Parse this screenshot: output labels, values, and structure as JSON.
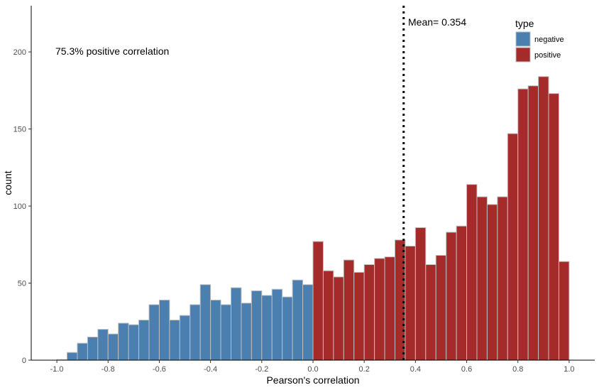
{
  "chart_data": {
    "type": "bar",
    "subtype": "histogram",
    "xlabel": "Pearson's correlation",
    "ylabel": "count",
    "xlim": [
      -1.1,
      1.1
    ],
    "ylim": [
      0,
      230
    ],
    "x_ticks": [
      -1.0,
      -0.8,
      -0.6,
      -0.4,
      -0.2,
      0.0,
      0.2,
      0.4,
      0.6,
      0.8,
      1.0
    ],
    "x_tick_labels": [
      "-1.0",
      "-0.8",
      "-0.6",
      "-0.4",
      "-0.2",
      "0.0",
      "0.2",
      "0.4",
      "0.6",
      "0.8",
      "1.0"
    ],
    "y_ticks": [
      0,
      50,
      100,
      150,
      200
    ],
    "y_tick_labels": [
      "0",
      "50",
      "100",
      "150",
      "200"
    ],
    "grid": false,
    "bin_width": 0.04,
    "series": [
      {
        "name": "negative",
        "color": "#4a7fb0",
        "bin_centers": [
          -0.98,
          -0.94,
          -0.9,
          -0.86,
          -0.82,
          -0.78,
          -0.74,
          -0.7,
          -0.66,
          -0.62,
          -0.58,
          -0.54,
          -0.5,
          -0.46,
          -0.42,
          -0.38,
          -0.34,
          -0.3,
          -0.26,
          -0.22,
          -0.18,
          -0.14,
          -0.1,
          -0.06,
          -0.02
        ],
        "values": [
          0,
          5,
          11,
          15,
          20,
          17,
          24,
          23,
          26,
          36,
          39,
          26,
          29,
          36,
          49,
          39,
          36,
          47,
          37,
          45,
          42,
          46,
          41,
          52,
          49
        ]
      },
      {
        "name": "positive",
        "color": "#a52a2a",
        "bin_centers": [
          0.02,
          0.06,
          0.1,
          0.14,
          0.18,
          0.22,
          0.26,
          0.3,
          0.34,
          0.38,
          0.42,
          0.46,
          0.5,
          0.54,
          0.58,
          0.62,
          0.66,
          0.7,
          0.74,
          0.78,
          0.82,
          0.86,
          0.9,
          0.94,
          0.98
        ],
        "values": [
          77,
          58,
          54,
          65,
          57,
          62,
          66,
          67,
          78,
          74,
          86,
          62,
          68,
          83,
          87,
          114,
          106,
          101,
          106,
          147,
          176,
          178,
          184,
          173,
          64
        ]
      }
    ],
    "mean_line": {
      "x": 0.354,
      "label": "Mean= 0.354",
      "style": "dotted"
    },
    "annotation": "75.3% positive correlation",
    "legend": {
      "title": "type",
      "position": "top-right",
      "entries": [
        "negative",
        "positive"
      ]
    },
    "bar_outline_color": "#bdbdbd"
  }
}
